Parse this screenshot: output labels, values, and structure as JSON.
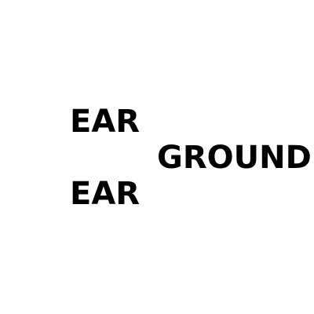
{
  "puzzle": {
    "top_word": "EAR",
    "middle_word": "GROUND",
    "bottom_word": "EAR"
  },
  "colors": {
    "background": "#ffffff",
    "text": "#000000"
  }
}
